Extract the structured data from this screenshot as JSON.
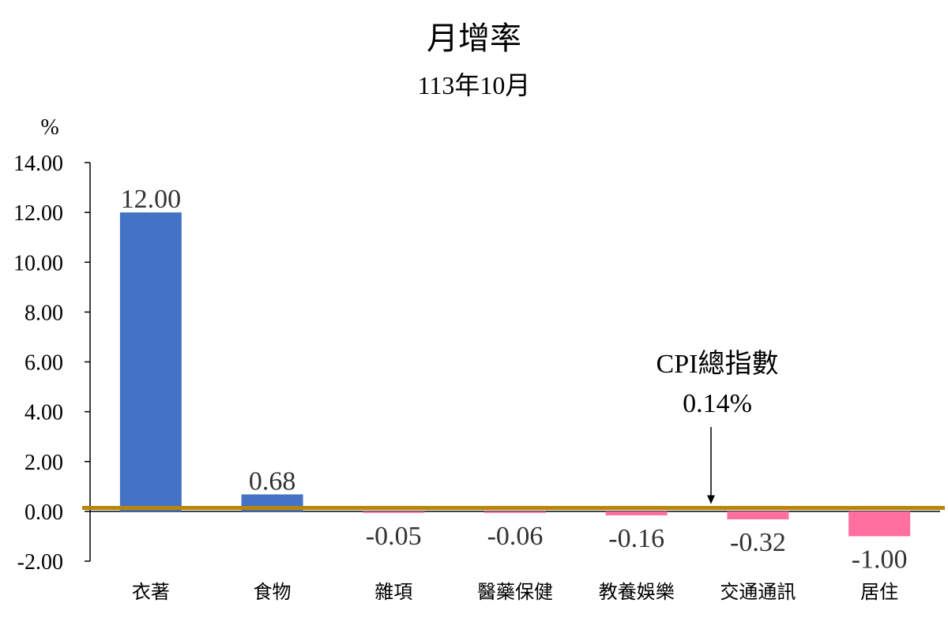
{
  "chart_data": {
    "type": "bar",
    "title": "月增率",
    "subtitle": "113年10月",
    "ylabel": "%",
    "categories": [
      "衣著",
      "食物",
      "雜項",
      "醫藥保健",
      "教養娛樂",
      "交通通訊",
      "居住"
    ],
    "values": [
      12.0,
      0.68,
      -0.05,
      -0.06,
      -0.16,
      -0.32,
      -1.0
    ],
    "data_labels": [
      "12.00",
      "0.68",
      "-0.05",
      "-0.06",
      "-0.16",
      "-0.32",
      "-1.00"
    ],
    "ylim": [
      -2,
      14
    ],
    "yticks": [
      -2,
      0,
      2,
      4,
      6,
      8,
      10,
      12,
      14
    ],
    "ytick_labels": [
      "-2.00",
      "0.00",
      "2.00",
      "4.00",
      "6.00",
      "8.00",
      "10.00",
      "12.00",
      "14.00"
    ],
    "reference_line": {
      "value": 0.14,
      "label_line1": "CPI總指數",
      "label_line2": "0.14%",
      "color": "#B8860B"
    },
    "colors": {
      "positive": "#4472C4",
      "negative": "#FF6F9F"
    },
    "grid": false,
    "legend": "none"
  }
}
